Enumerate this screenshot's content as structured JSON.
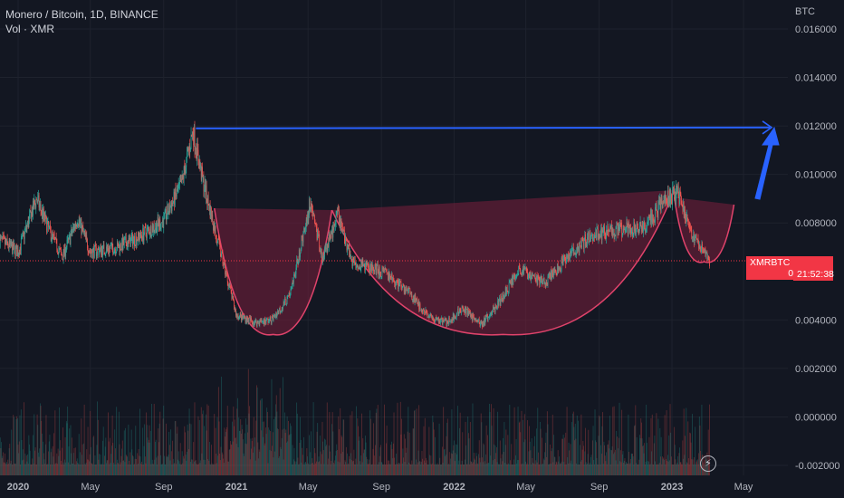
{
  "legend": {
    "symbol_line": "Monero / Bitcoin, 1D, BINANCE",
    "volume_line": "Vol · XMR"
  },
  "price_axis": {
    "unit": "BTC",
    "ticks": [
      "0.016000",
      "0.014000",
      "0.012000",
      "0.010000",
      "0.008000",
      "0.004000",
      "0.002000",
      "0.000000",
      "-0.002000"
    ]
  },
  "time_axis": {
    "ticks": [
      "2020",
      "May",
      "Sep",
      "2021",
      "May",
      "Sep",
      "2022",
      "May",
      "Sep",
      "2023",
      "May"
    ]
  },
  "price_tag": {
    "symbol": "XMRBTC",
    "price": "0.006427",
    "countdown": "21:52:38"
  },
  "colors": {
    "background": "#131722",
    "up": "#26a69a",
    "down": "#ef5350",
    "cup_fill": "#7a1f3d",
    "cup_stroke": "#e0436b",
    "resistance": "#2962ff",
    "arrow": "#2962ff",
    "price_tag": "#f23645"
  },
  "icons": {
    "replay": "lightning-icon"
  },
  "chart_data": {
    "type": "candlestick",
    "title": "Monero / Bitcoin, 1D, BINANCE",
    "ylabel": "BTC",
    "ylim": [
      -0.0025,
      0.0168
    ],
    "last_price": 0.006427,
    "price_path": [
      [
        "2019-12-01",
        0.0073
      ],
      [
        "2020-01-01",
        0.0068
      ],
      [
        "2020-02-01",
        0.009
      ],
      [
        "2020-02-20",
        0.0078
      ],
      [
        "2020-03-15",
        0.0066
      ],
      [
        "2020-04-10",
        0.0082
      ],
      [
        "2020-05-01",
        0.0068
      ],
      [
        "2020-06-15",
        0.007
      ],
      [
        "2020-07-20",
        0.0074
      ],
      [
        "2020-09-01",
        0.0081
      ],
      [
        "2020-10-01",
        0.0096
      ],
      [
        "2020-10-20",
        0.0118
      ],
      [
        "2020-11-05",
        0.0098
      ],
      [
        "2020-12-01",
        0.0072
      ],
      [
        "2021-01-01",
        0.0042
      ],
      [
        "2021-02-01",
        0.0039
      ],
      [
        "2021-03-01",
        0.004
      ],
      [
        "2021-04-01",
        0.005
      ],
      [
        "2021-05-05",
        0.0089
      ],
      [
        "2021-05-25",
        0.0065
      ],
      [
        "2021-06-20",
        0.0083
      ],
      [
        "2021-07-15",
        0.0064
      ],
      [
        "2021-09-01",
        0.006
      ],
      [
        "2021-10-15",
        0.0052
      ],
      [
        "2021-11-20",
        0.0041
      ],
      [
        "2021-12-20",
        0.0039
      ],
      [
        "2022-01-15",
        0.0045
      ],
      [
        "2022-02-15",
        0.0038
      ],
      [
        "2022-03-20",
        0.0048
      ],
      [
        "2022-04-20",
        0.0061
      ],
      [
        "2022-06-01",
        0.0055
      ],
      [
        "2022-07-10",
        0.0066
      ],
      [
        "2022-08-20",
        0.0075
      ],
      [
        "2022-10-01",
        0.0077
      ],
      [
        "2022-11-15",
        0.0078
      ],
      [
        "2022-12-20",
        0.0089
      ],
      [
        "2023-01-10",
        0.0093
      ],
      [
        "2023-02-01",
        0.0077
      ],
      [
        "2023-02-25",
        0.0068
      ],
      [
        "2023-03-05",
        0.0064
      ]
    ],
    "drawings": {
      "resistance_level": 0.0119,
      "cup_1": {
        "from": "2020-11-25",
        "to": "2021-06-10",
        "bottom": 0.0034
      },
      "cup_2": {
        "from": "2021-06-10",
        "to": "2023-01-05",
        "bottom": 0.0034
      },
      "cup_3": {
        "from": "2023-01-05",
        "to": "2023-04-15",
        "bottom": 0.0064
      }
    },
    "volume_series": "Vol · XMR"
  }
}
